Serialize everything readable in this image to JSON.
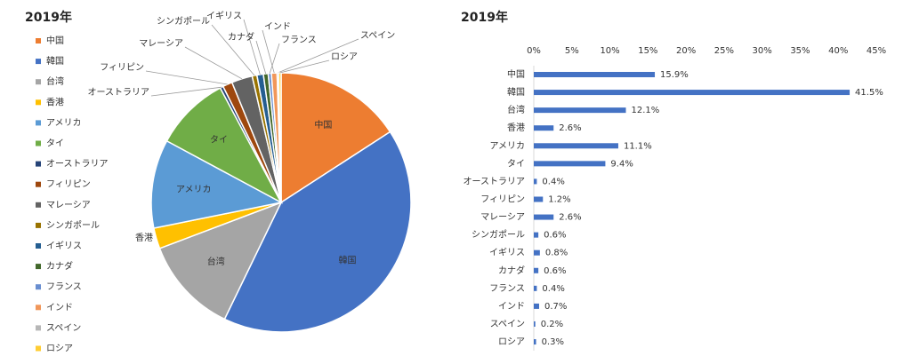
{
  "chart_data": [
    {
      "type": "pie",
      "title": "2019年",
      "categories": [
        "中国",
        "韓国",
        "台湾",
        "香港",
        "アメリカ",
        "タイ",
        "オーストラリア",
        "フィリピン",
        "マレーシア",
        "シンガポール",
        "イギリス",
        "カナダ",
        "フランス",
        "インド",
        "スペイン",
        "ロシア"
      ],
      "values": [
        15.9,
        41.5,
        12.1,
        2.6,
        11.1,
        9.4,
        0.4,
        1.2,
        2.6,
        0.6,
        0.8,
        0.6,
        0.4,
        0.7,
        0.2,
        0.3
      ],
      "colors": [
        "#ed7d31",
        "#4472c4",
        "#a5a5a5",
        "#ffc000",
        "#5b9bd5",
        "#70ad47",
        "#264478",
        "#9e480e",
        "#636363",
        "#997300",
        "#255e91",
        "#43682b",
        "#698ed0",
        "#f1975a",
        "#b7b7b7",
        "#ffcd33"
      ],
      "legend": "left"
    },
    {
      "type": "hbar",
      "title": "2019年",
      "categories": [
        "中国",
        "韓国",
        "台湾",
        "香港",
        "アメリカ",
        "タイ",
        "オーストラリア",
        "フィリピン",
        "マレーシア",
        "シンガポール",
        "イギリス",
        "カナダ",
        "フランス",
        "インド",
        "スペイン",
        "ロシア"
      ],
      "values": [
        15.9,
        41.5,
        12.1,
        2.6,
        11.1,
        9.4,
        0.4,
        1.2,
        2.6,
        0.6,
        0.8,
        0.6,
        0.4,
        0.7,
        0.2,
        0.3
      ],
      "value_labels": [
        "15.9%",
        "41.5%",
        "12.1%",
        "2.6%",
        "11.1%",
        "9.4%",
        "0.4%",
        "1.2%",
        "2.6%",
        "0.6%",
        "0.8%",
        "0.6%",
        "0.4%",
        "0.7%",
        "0.2%",
        "0.3%"
      ],
      "color": "#4472c4",
      "xlim": [
        0,
        45
      ],
      "xticks": [
        {
          "value": 0,
          "label": "0%"
        },
        {
          "value": 5,
          "label": "5%"
        },
        {
          "value": 10,
          "label": "10%"
        },
        {
          "value": 15,
          "label": "15%"
        },
        {
          "value": 20,
          "label": "20%"
        },
        {
          "value": 25,
          "label": "25%"
        },
        {
          "value": 30,
          "label": "30%"
        },
        {
          "value": 35,
          "label": "35%"
        },
        {
          "value": 40,
          "label": "40%"
        },
        {
          "value": 45,
          "label": "45%"
        }
      ]
    }
  ]
}
